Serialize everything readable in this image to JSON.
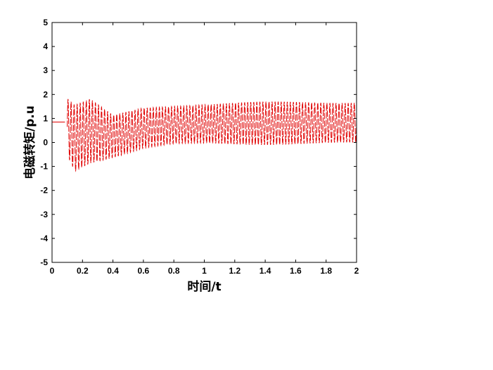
{
  "chart_data": {
    "type": "line",
    "title": "",
    "xlabel": "时间/t",
    "ylabel": "电磁转矩/p.u",
    "xlim": [
      0,
      2
    ],
    "ylim": [
      -5,
      5
    ],
    "xticks": [
      "0",
      "0.2",
      "0.4",
      "0.6",
      "0.8",
      "1",
      "1.2",
      "1.4",
      "1.6",
      "1.8",
      "2"
    ],
    "yticks": [
      "5",
      "4",
      "3",
      "2",
      "1",
      "0",
      "-1",
      "-2",
      "-3",
      "-4",
      "-5"
    ],
    "grid": false,
    "legend": "none",
    "series": [
      {
        "color": "#e00000",
        "description_points": {
          "initial_steady_value": 0.85,
          "disturbance_time": 0.1,
          "envelope": [
            {
              "t": 0.1,
              "max": 1.8,
              "min": -0.5
            },
            {
              "t": 0.15,
              "max": 1.5,
              "min": -1.15
            },
            {
              "t": 0.25,
              "max": 1.75,
              "min": -0.8
            },
            {
              "t": 0.4,
              "max": 1.1,
              "min": -0.6
            },
            {
              "t": 0.6,
              "max": 1.45,
              "min": -0.25
            },
            {
              "t": 0.8,
              "max": 1.55,
              "min": -0.1
            },
            {
              "t": 1.0,
              "max": 1.6,
              "min": -0.05
            },
            {
              "t": 1.4,
              "max": 1.65,
              "min": -0.05
            },
            {
              "t": 2.0,
              "max": 1.7,
              "min": -0.05
            }
          ],
          "oscillation_frequency_hz": 50
        }
      }
    ]
  }
}
